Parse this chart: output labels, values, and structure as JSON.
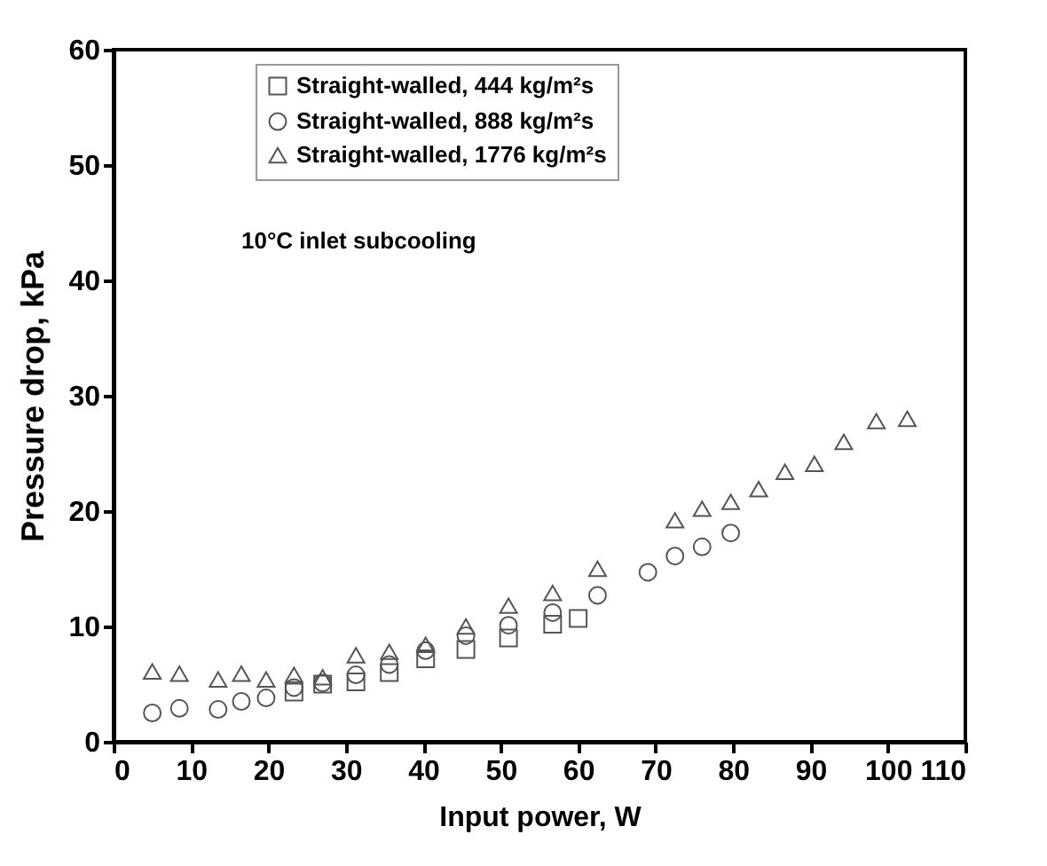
{
  "chart_data": {
    "type": "scatter",
    "xlabel": "Input power, W",
    "ylabel": "Pressure drop, kPa",
    "xlim": [
      0,
      110
    ],
    "xticks": [
      0,
      10,
      20,
      30,
      40,
      50,
      60,
      70,
      80,
      90,
      100,
      110
    ],
    "ylim": [
      0,
      60
    ],
    "yticks": [
      0,
      10,
      20,
      30,
      40,
      50,
      60
    ],
    "grid": false,
    "legend": "top left",
    "annotations": [
      "10°C inlet subcooling"
    ],
    "series": [
      {
        "name": "Straight-walled, 444 kg/m²s",
        "color": "#555555",
        "marker": "square",
        "x": [
          23.3,
          27,
          31.3,
          35.6,
          40.3,
          45.5,
          51,
          56.7,
          60
        ],
        "values": [
          4.3,
          5,
          5.2,
          6,
          7.2,
          8,
          9,
          10.2,
          10.7
        ]
      },
      {
        "name": "Straight-walled, 888 kg/m²s",
        "color": "#555555",
        "marker": "circle",
        "x": [
          5,
          8.5,
          13.5,
          16.5,
          19.7,
          23.3,
          27,
          31.3,
          35.6,
          40.3,
          45.5,
          51,
          56.7,
          62.5,
          69,
          72.5,
          76,
          79.7
        ],
        "values": [
          2.5,
          2.9,
          2.8,
          3.5,
          3.8,
          4.7,
          5.1,
          5.8,
          6.7,
          7.9,
          9.2,
          10.1,
          11.2,
          12.7,
          14.7,
          16.1,
          16.9,
          18.1
        ]
      },
      {
        "name": "Straight-walled, 1776 kg/m²s",
        "color": "#555555",
        "marker": "triangle",
        "x": [
          5,
          8.5,
          13.5,
          16.5,
          19.7,
          23.3,
          27,
          31.3,
          35.6,
          40.3,
          45.5,
          51,
          56.7,
          62.5,
          72.5,
          76,
          79.7,
          83.3,
          86.7,
          90.5,
          94.3,
          98.5,
          102.5
        ],
        "values": [
          6.1,
          5.9,
          5.4,
          5.9,
          5.4,
          5.8,
          5.6,
          7.5,
          7.8,
          8.4,
          10,
          11.8,
          12.9,
          15,
          19.2,
          20.2,
          20.8,
          21.9,
          23.4,
          24.1,
          26,
          27.8,
          28
        ]
      }
    ]
  }
}
